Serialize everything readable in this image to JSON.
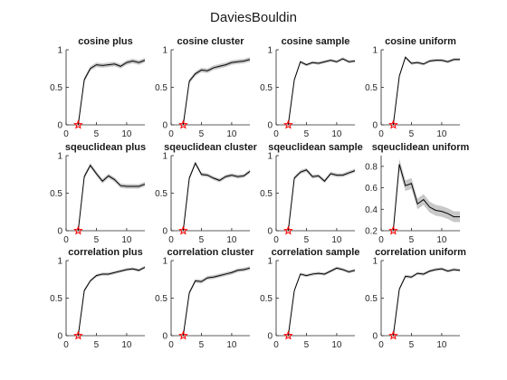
{
  "figure_title": "DaviesBouldin",
  "colors": {
    "line": "#000000",
    "band": "#c8c8c8",
    "marker": "#ff0000",
    "axis": "#262626"
  },
  "chart_data": [
    {
      "type": "line",
      "title": "cosine plus",
      "xlim": [
        0,
        13
      ],
      "ylim": [
        0,
        1
      ],
      "xticks": [
        0,
        5,
        10
      ],
      "yticks": [
        0,
        0.5,
        1
      ],
      "yticklabels": [
        "0",
        "0.5",
        "1"
      ],
      "x": [
        2,
        3,
        4,
        5,
        6,
        7,
        8,
        9,
        10,
        11,
        12,
        13
      ],
      "y": [
        0.0,
        0.6,
        0.75,
        0.8,
        0.79,
        0.8,
        0.81,
        0.78,
        0.83,
        0.85,
        0.83,
        0.86
      ],
      "band": 0.03,
      "marker": {
        "x": 2,
        "y": 0
      }
    },
    {
      "type": "line",
      "title": "cosine cluster",
      "xlim": [
        0,
        13
      ],
      "ylim": [
        0,
        1
      ],
      "xticks": [
        0,
        5,
        10
      ],
      "yticks": [
        0,
        0.5,
        1
      ],
      "yticklabels": [
        "0",
        "0.5",
        "1"
      ],
      "x": [
        2,
        3,
        4,
        5,
        6,
        7,
        8,
        9,
        10,
        11,
        12,
        13
      ],
      "y": [
        0.0,
        0.58,
        0.68,
        0.73,
        0.72,
        0.76,
        0.78,
        0.8,
        0.83,
        0.84,
        0.85,
        0.87
      ],
      "band": 0.03,
      "marker": {
        "x": 2,
        "y": 0
      }
    },
    {
      "type": "line",
      "title": "cosine sample",
      "xlim": [
        0,
        13
      ],
      "ylim": [
        0,
        1
      ],
      "xticks": [
        0,
        5,
        10
      ],
      "yticks": [
        0,
        0.5,
        1
      ],
      "yticklabels": [
        "0",
        "0.5",
        "1"
      ],
      "x": [
        2,
        3,
        4,
        5,
        6,
        7,
        8,
        9,
        10,
        11,
        12,
        13
      ],
      "y": [
        0.0,
        0.6,
        0.84,
        0.8,
        0.83,
        0.82,
        0.84,
        0.86,
        0.84,
        0.88,
        0.84,
        0.85
      ],
      "band": 0.02,
      "marker": {
        "x": 2,
        "y": 0
      }
    },
    {
      "type": "line",
      "title": "cosine uniform",
      "xlim": [
        0,
        13
      ],
      "ylim": [
        0,
        1
      ],
      "xticks": [
        0,
        5,
        10
      ],
      "yticks": [
        0,
        0.5,
        1
      ],
      "yticklabels": [
        "0",
        "0.5",
        "1"
      ],
      "x": [
        2,
        3,
        4,
        5,
        6,
        7,
        8,
        9,
        10,
        11,
        12,
        13
      ],
      "y": [
        0.0,
        0.65,
        0.9,
        0.82,
        0.83,
        0.81,
        0.85,
        0.86,
        0.86,
        0.84,
        0.87,
        0.87
      ],
      "band": 0.02,
      "marker": {
        "x": 2,
        "y": 0
      }
    },
    {
      "type": "line",
      "title": "sqeuclidean plus",
      "xlim": [
        0,
        13
      ],
      "ylim": [
        0,
        1
      ],
      "xticks": [
        0,
        5,
        10
      ],
      "yticks": [
        0,
        0.5,
        1
      ],
      "yticklabels": [
        "0",
        "0.5",
        "1"
      ],
      "x": [
        2,
        3,
        4,
        5,
        6,
        7,
        8,
        9,
        10,
        11,
        12,
        13
      ],
      "y": [
        0.0,
        0.72,
        0.87,
        0.76,
        0.66,
        0.73,
        0.68,
        0.6,
        0.59,
        0.59,
        0.59,
        0.62
      ],
      "band": 0.03,
      "marker": {
        "x": 2,
        "y": 0
      }
    },
    {
      "type": "line",
      "title": "sqeuclidean cluster",
      "xlim": [
        0,
        13
      ],
      "ylim": [
        0,
        1
      ],
      "xticks": [
        0,
        5,
        10
      ],
      "yticks": [
        0,
        0.5,
        1
      ],
      "yticklabels": [
        "0",
        "0.5",
        "1"
      ],
      "x": [
        2,
        3,
        4,
        5,
        6,
        7,
        8,
        9,
        10,
        11,
        12,
        13
      ],
      "y": [
        0.0,
        0.7,
        0.9,
        0.75,
        0.74,
        0.7,
        0.67,
        0.72,
        0.74,
        0.72,
        0.73,
        0.79
      ],
      "band": 0.025,
      "marker": {
        "x": 2,
        "y": 0
      }
    },
    {
      "type": "line",
      "title": "sqeuclidean sample",
      "xlim": [
        0,
        13
      ],
      "ylim": [
        0,
        1
      ],
      "xticks": [
        0,
        5,
        10
      ],
      "yticks": [
        0,
        0.5,
        1
      ],
      "yticklabels": [
        "0",
        "0.5",
        "1"
      ],
      "x": [
        2,
        3,
        4,
        5,
        6,
        7,
        8,
        9,
        10,
        11,
        12,
        13
      ],
      "y": [
        0.0,
        0.7,
        0.78,
        0.81,
        0.72,
        0.73,
        0.66,
        0.76,
        0.74,
        0.74,
        0.77,
        0.8
      ],
      "band": 0.025,
      "marker": {
        "x": 2,
        "y": 0
      }
    },
    {
      "type": "line",
      "title": "sqeuclidean uniform",
      "xlim": [
        0,
        13
      ],
      "ylim": [
        0.2,
        0.9
      ],
      "xticks": [
        0,
        5,
        10
      ],
      "yticks": [
        0.2,
        0.4,
        0.6,
        0.8
      ],
      "yticklabels": [
        "0.2",
        "0.4",
        "0.6",
        "0.8"
      ],
      "x": [
        2,
        3,
        4,
        5,
        6,
        7,
        8,
        9,
        10,
        11,
        12,
        13
      ],
      "y": [
        0.2,
        0.82,
        0.62,
        0.64,
        0.45,
        0.49,
        0.42,
        0.39,
        0.38,
        0.36,
        0.33,
        0.33
      ],
      "band": 0.05,
      "marker": {
        "x": 2,
        "y": 0.2
      }
    },
    {
      "type": "line",
      "title": "correlation plus",
      "xlim": [
        0,
        13
      ],
      "ylim": [
        0,
        1
      ],
      "xticks": [
        0,
        5,
        10
      ],
      "yticks": [
        0,
        0.5,
        1
      ],
      "yticklabels": [
        "0",
        "0.5",
        "1"
      ],
      "x": [
        2,
        3,
        4,
        5,
        6,
        7,
        8,
        9,
        10,
        11,
        12,
        13
      ],
      "y": [
        0.0,
        0.6,
        0.73,
        0.8,
        0.82,
        0.82,
        0.84,
        0.86,
        0.88,
        0.89,
        0.87,
        0.91
      ],
      "band": 0.02,
      "marker": {
        "x": 2,
        "y": 0
      }
    },
    {
      "type": "line",
      "title": "correlation cluster",
      "xlim": [
        0,
        13
      ],
      "ylim": [
        0,
        1
      ],
      "xticks": [
        0,
        5,
        10
      ],
      "yticks": [
        0,
        0.5,
        1
      ],
      "yticklabels": [
        "0",
        "0.5",
        "1"
      ],
      "x": [
        2,
        3,
        4,
        5,
        6,
        7,
        8,
        9,
        10,
        11,
        12,
        13
      ],
      "y": [
        0.0,
        0.57,
        0.73,
        0.72,
        0.77,
        0.78,
        0.8,
        0.82,
        0.84,
        0.87,
        0.88,
        0.9
      ],
      "band": 0.025,
      "marker": {
        "x": 2,
        "y": 0
      }
    },
    {
      "type": "line",
      "title": "correlation sample",
      "xlim": [
        0,
        13
      ],
      "ylim": [
        0,
        1
      ],
      "xticks": [
        0,
        5,
        10
      ],
      "yticks": [
        0,
        0.5,
        1
      ],
      "yticklabels": [
        "0",
        "0.5",
        "1"
      ],
      "x": [
        2,
        3,
        4,
        5,
        6,
        7,
        8,
        9,
        10,
        11,
        12,
        13
      ],
      "y": [
        0.0,
        0.6,
        0.82,
        0.8,
        0.82,
        0.83,
        0.82,
        0.86,
        0.9,
        0.88,
        0.85,
        0.87
      ],
      "band": 0.02,
      "marker": {
        "x": 2,
        "y": 0
      }
    },
    {
      "type": "line",
      "title": "correlation uniform",
      "xlim": [
        0,
        13
      ],
      "ylim": [
        0,
        1
      ],
      "xticks": [
        0,
        5,
        10
      ],
      "yticks": [
        0,
        0.5,
        1
      ],
      "yticklabels": [
        "0",
        "0.5",
        "1"
      ],
      "x": [
        2,
        3,
        4,
        5,
        6,
        7,
        8,
        9,
        10,
        11,
        12,
        13
      ],
      "y": [
        0.0,
        0.62,
        0.79,
        0.78,
        0.83,
        0.82,
        0.86,
        0.88,
        0.89,
        0.86,
        0.88,
        0.87
      ],
      "band": 0.02,
      "marker": {
        "x": 2,
        "y": 0
      }
    }
  ]
}
